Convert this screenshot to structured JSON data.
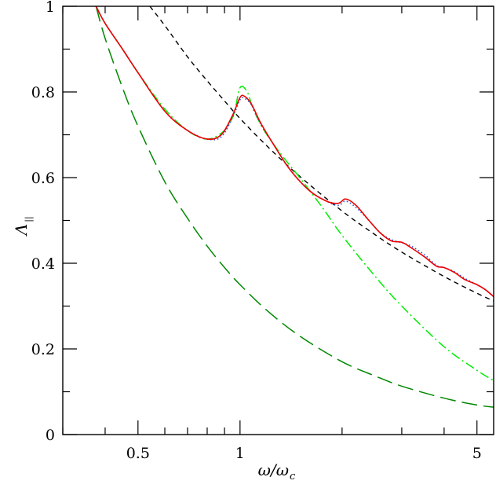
{
  "chart_data": {
    "type": "line",
    "xlabel": "ω/ω",
    "xlabel_sub": "c",
    "ylabel": "Λ",
    "ylabel_sub": "||",
    "x_scale": "log",
    "xlim": [
      0.3,
      5.6
    ],
    "ylim": [
      0,
      1
    ],
    "xticks_labeled": [
      {
        "value": 0.5,
        "label": "0.5"
      },
      {
        "value": 1,
        "label": "1"
      },
      {
        "value": 5,
        "label": "5"
      }
    ],
    "xticks_major": [
      0.5,
      1,
      5
    ],
    "xticks_minor": [
      0.3,
      0.4,
      0.6,
      0.7,
      0.8,
      0.9,
      2,
      3,
      4
    ],
    "yticks_labeled": [
      {
        "value": 0,
        "label": "0"
      },
      {
        "value": 0.2,
        "label": "0.2"
      },
      {
        "value": 0.4,
        "label": "0.4"
      },
      {
        "value": 0.6,
        "label": "0.6"
      },
      {
        "value": 0.8,
        "label": "0.8"
      },
      {
        "value": 1,
        "label": "1"
      }
    ],
    "yticks_minor": [
      0.1,
      0.3,
      0.5,
      0.7,
      0.9
    ],
    "grid": false,
    "legend": "none",
    "series": [
      {
        "color": "#000000",
        "style": "short-dash",
        "x": [
          0.542,
          0.6,
          0.7,
          0.8,
          0.9,
          1.0,
          1.2,
          1.5,
          2.0,
          2.5,
          3.0,
          4.0,
          5.0,
          5.6
        ],
        "y": [
          1.0,
          0.955,
          0.882,
          0.826,
          0.779,
          0.738,
          0.674,
          0.603,
          0.522,
          0.467,
          0.426,
          0.369,
          0.33,
          0.312
        ]
      },
      {
        "color": "#00ee00",
        "style": "dash-dot",
        "x": [
          0.376,
          0.4,
          0.45,
          0.5,
          0.6,
          0.7,
          0.8,
          0.9,
          0.96,
          1.0,
          1.05,
          1.1,
          1.2,
          1.35,
          1.5,
          1.75,
          2.0,
          2.5,
          3.0,
          4.0,
          5.0,
          5.6
        ],
        "y": [
          1.0,
          0.96,
          0.9,
          0.845,
          0.76,
          0.71,
          0.69,
          0.71,
          0.75,
          0.81,
          0.8,
          0.755,
          0.7,
          0.645,
          0.6,
          0.53,
          0.465,
          0.37,
          0.3,
          0.205,
          0.15,
          0.126
        ]
      },
      {
        "color": "#008800",
        "style": "long-dash",
        "x": [
          0.376,
          0.4,
          0.45,
          0.5,
          0.6,
          0.7,
          0.8,
          0.9,
          1.0,
          1.2,
          1.5,
          2.0,
          2.5,
          3.0,
          4.0,
          5.0,
          5.6
        ],
        "y": [
          1.0,
          0.925,
          0.81,
          0.72,
          0.59,
          0.505,
          0.44,
          0.39,
          0.35,
          0.29,
          0.23,
          0.17,
          0.137,
          0.113,
          0.085,
          0.069,
          0.064
        ]
      },
      {
        "color": "#2255dd",
        "style": "dotted",
        "x": [
          0.376,
          0.4,
          0.45,
          0.5,
          0.6,
          0.7,
          0.8,
          0.88,
          0.95,
          1.0,
          1.03,
          1.08,
          1.15,
          1.25,
          1.4,
          1.6,
          1.8,
          1.95,
          2.05,
          2.2,
          2.4,
          2.6,
          2.8,
          3.0,
          3.2,
          3.5,
          3.8,
          4.0,
          4.3,
          4.6,
          5.0,
          5.3,
          5.6
        ],
        "y": [
          1.0,
          0.96,
          0.9,
          0.845,
          0.755,
          0.71,
          0.69,
          0.695,
          0.74,
          0.782,
          0.785,
          0.77,
          0.725,
          0.68,
          0.62,
          0.57,
          0.545,
          0.535,
          0.545,
          0.53,
          0.5,
          0.47,
          0.455,
          0.448,
          0.44,
          0.42,
          0.395,
          0.39,
          0.38,
          0.365,
          0.35,
          0.338,
          0.322
        ]
      },
      {
        "color": "#ee0000",
        "style": "solid",
        "x": [
          0.376,
          0.4,
          0.45,
          0.5,
          0.6,
          0.7,
          0.8,
          0.88,
          0.95,
          1.0,
          1.03,
          1.08,
          1.15,
          1.25,
          1.4,
          1.6,
          1.8,
          1.95,
          2.05,
          2.2,
          2.4,
          2.6,
          2.8,
          3.0,
          3.2,
          3.5,
          3.8,
          4.0,
          4.3,
          4.6,
          5.0,
          5.3,
          5.6
        ],
        "y": [
          1.0,
          0.96,
          0.9,
          0.845,
          0.755,
          0.71,
          0.69,
          0.7,
          0.745,
          0.787,
          0.79,
          0.772,
          0.728,
          0.68,
          0.62,
          0.57,
          0.545,
          0.54,
          0.55,
          0.535,
          0.5,
          0.47,
          0.452,
          0.449,
          0.436,
          0.415,
          0.393,
          0.39,
          0.378,
          0.362,
          0.35,
          0.338,
          0.322
        ]
      }
    ]
  }
}
